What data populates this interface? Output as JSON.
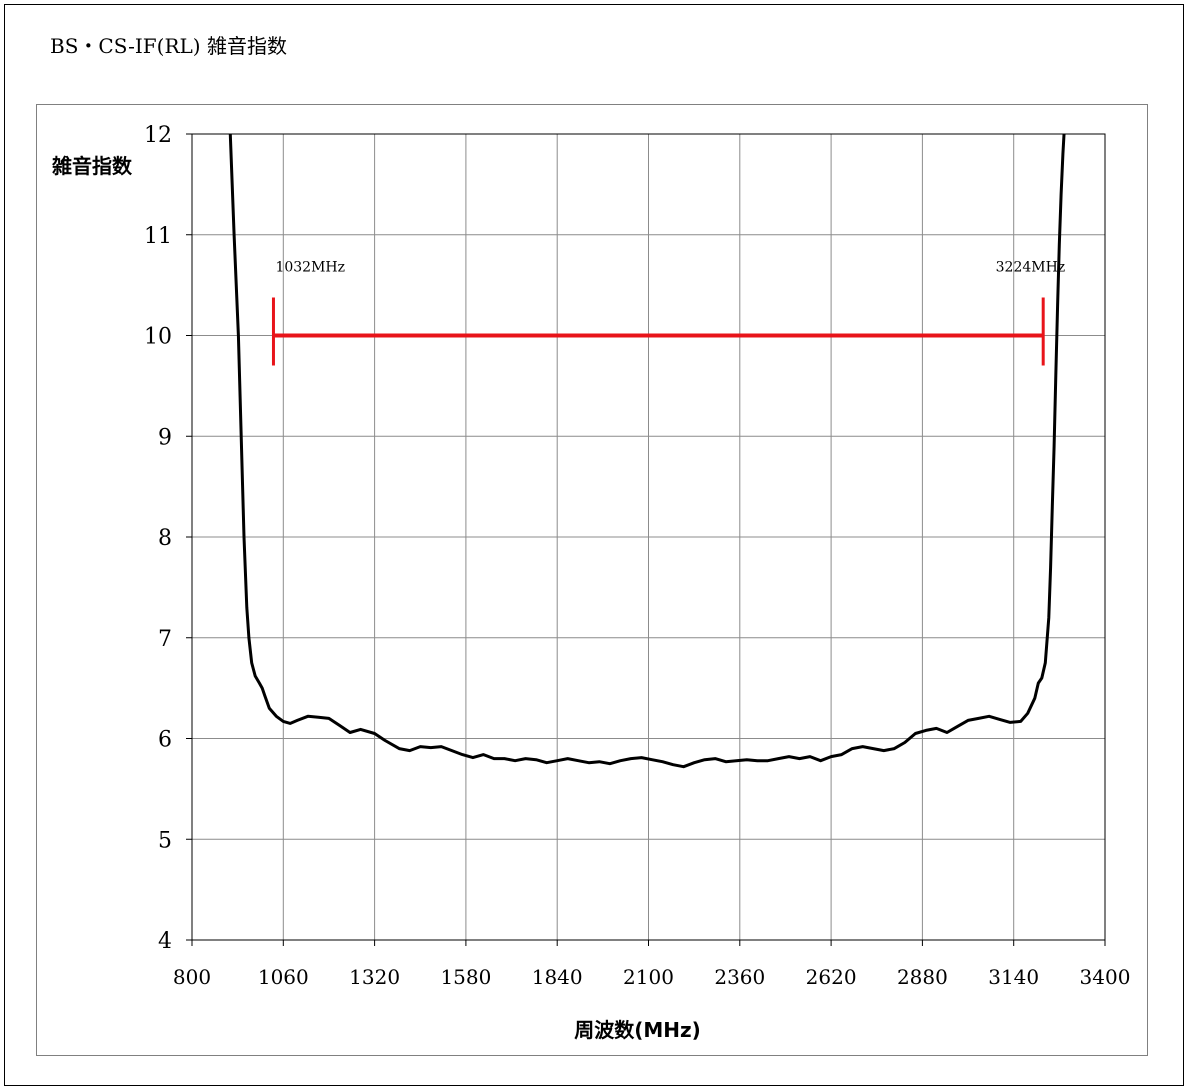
{
  "page": {
    "title": "BS・CS-IF(RL) 雑音指数"
  },
  "chart_data": {
    "type": "line",
    "title": "",
    "xlabel": "周波数(MHz)",
    "ylabel": "雑音指数",
    "xlim": [
      800,
      3400
    ],
    "ylim": [
      4,
      12
    ],
    "xticks": [
      800,
      1060,
      1320,
      1580,
      1840,
      2100,
      2360,
      2620,
      2880,
      3140,
      3400
    ],
    "yticks": [
      4,
      5,
      6,
      7,
      8,
      9,
      10,
      11,
      12
    ],
    "grid": true,
    "series": [
      {
        "color": "#000000",
        "x": [
          908,
          920,
          932,
          940,
          948,
          956,
          962,
          970,
          980,
          992,
          1000,
          1008,
          1020,
          1040,
          1060,
          1080,
          1100,
          1130,
          1160,
          1190,
          1220,
          1250,
          1280,
          1320,
          1350,
          1390,
          1420,
          1450,
          1480,
          1510,
          1540,
          1570,
          1600,
          1630,
          1660,
          1690,
          1720,
          1750,
          1780,
          1810,
          1840,
          1870,
          1900,
          1930,
          1960,
          1990,
          2020,
          2050,
          2080,
          2110,
          2140,
          2170,
          2200,
          2230,
          2260,
          2290,
          2320,
          2350,
          2380,
          2410,
          2440,
          2470,
          2500,
          2530,
          2560,
          2590,
          2620,
          2650,
          2680,
          2710,
          2740,
          2770,
          2800,
          2830,
          2860,
          2890,
          2920,
          2950,
          2980,
          3010,
          3040,
          3070,
          3100,
          3130,
          3160,
          3180,
          3200,
          3210,
          3220,
          3230,
          3240,
          3245,
          3250,
          3255,
          3260,
          3265,
          3270,
          3275,
          3280,
          3285
        ],
        "y": [
          12.1,
          11.0,
          10.0,
          9.0,
          8.0,
          7.3,
          7.0,
          6.75,
          6.62,
          6.55,
          6.5,
          6.42,
          6.3,
          6.22,
          6.17,
          6.15,
          6.18,
          6.22,
          6.21,
          6.2,
          6.13,
          6.06,
          6.09,
          6.05,
          5.98,
          5.9,
          5.88,
          5.92,
          5.91,
          5.92,
          5.88,
          5.84,
          5.81,
          5.84,
          5.8,
          5.8,
          5.78,
          5.8,
          5.79,
          5.76,
          5.78,
          5.8,
          5.78,
          5.76,
          5.77,
          5.75,
          5.78,
          5.8,
          5.81,
          5.79,
          5.77,
          5.74,
          5.72,
          5.76,
          5.79,
          5.8,
          5.77,
          5.78,
          5.79,
          5.78,
          5.78,
          5.8,
          5.82,
          5.8,
          5.82,
          5.78,
          5.82,
          5.84,
          5.9,
          5.92,
          5.9,
          5.88,
          5.9,
          5.96,
          6.05,
          6.08,
          6.1,
          6.06,
          6.12,
          6.18,
          6.2,
          6.22,
          6.19,
          6.16,
          6.17,
          6.25,
          6.4,
          6.55,
          6.6,
          6.75,
          7.2,
          7.7,
          8.3,
          8.9,
          9.6,
          10.3,
          10.9,
          11.4,
          11.8,
          12.1
        ]
      }
    ],
    "annotations": [
      {
        "type": "range_bar",
        "color": "#e8141a",
        "y": 10,
        "x_start": 1032,
        "x_end": 3224,
        "label_start": "1032MHz",
        "label_end": "3224MHz"
      }
    ]
  }
}
